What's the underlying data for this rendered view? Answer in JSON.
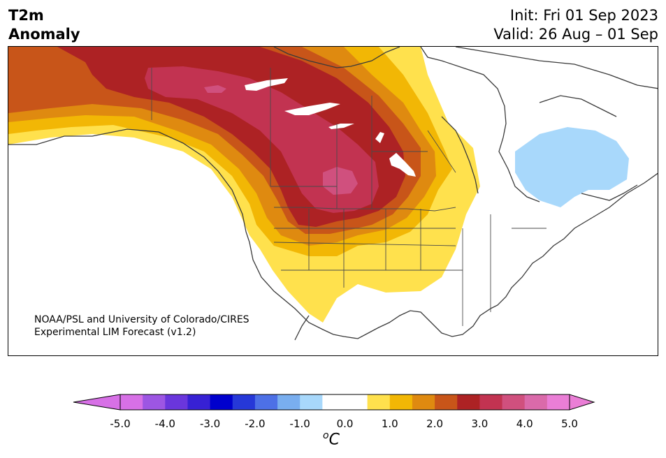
{
  "header": {
    "title_line1": "T2m",
    "title_line2": "Anomaly",
    "init": "Init: Fri 01 Sep 2023",
    "valid": "Valid: 26 Aug – 01 Sep"
  },
  "credit": {
    "line1": "NOAA/PSL and University of Colorado/CIRES",
    "line2": "Experimental LIM Forecast (v1.2)"
  },
  "colorbar": {
    "unit_base": "C",
    "unit_sup": "o",
    "ticks": [
      "-5.0",
      "-4.0",
      "-3.0",
      "-2.0",
      "-1.0",
      "0.0",
      "1.0",
      "2.0",
      "3.0",
      "4.0",
      "5.0"
    ],
    "colors": [
      "#d770e6",
      "#9d56e3",
      "#6a36dc",
      "#3721d4",
      "#0000cd",
      "#2638d8",
      "#4d70e6",
      "#79aeef",
      "#a8d8fb",
      "#ffffff",
      "#ffffff",
      "#ffe14d",
      "#f2b705",
      "#df8a10",
      "#c85519",
      "#ad2224",
      "#c23351",
      "#d0507e",
      "#da6aaa",
      "#ea7ed6"
    ],
    "extend_low_color": "#d770e6",
    "extend_high_color": "#ea7ed6"
  },
  "map": {
    "region": "North America",
    "anomaly_colors": {
      "plus_0_5": "#ffe14d",
      "plus_1_0": "#f2b705",
      "plus_1_5": "#df8a10",
      "plus_2_0": "#c85519",
      "plus_2_5": "#ad2224",
      "plus_3_0": "#c23351",
      "plus_3_5": "#d0507e",
      "minus_0_5": "#a8d8fb"
    }
  }
}
